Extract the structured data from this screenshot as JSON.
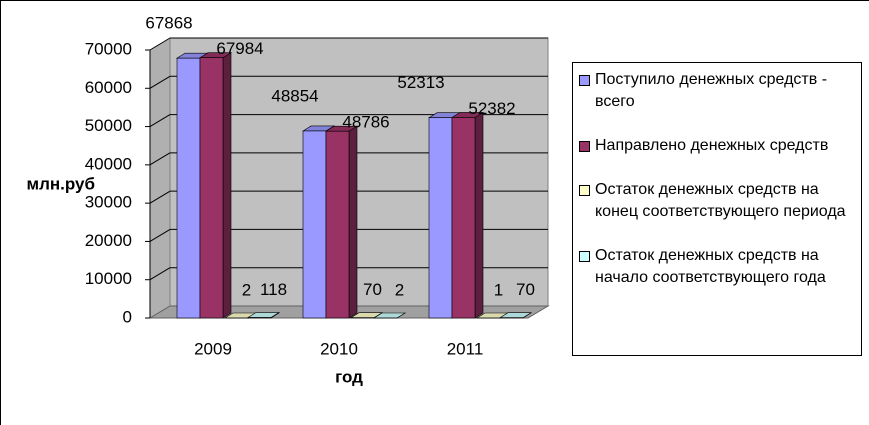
{
  "chart_data": {
    "type": "bar3d",
    "x_label": "год",
    "y_label": "млн.руб",
    "categories": [
      "2009",
      "2010",
      "2011"
    ],
    "series": [
      {
        "name": "Поступило денежных средств - всего",
        "color": "#9999ff",
        "values": [
          67868,
          48854,
          52313
        ]
      },
      {
        "name": "Направлено денежных средств",
        "color": "#993366",
        "values": [
          67984,
          48786,
          52382
        ]
      },
      {
        "name": "Остаток денежных средств на конец соответствующего периода",
        "color": "#ffffcc",
        "values": [
          2,
          70,
          1
        ]
      },
      {
        "name": "Остаток денежных средств на начало соответствующего года",
        "color": "#ccffff",
        "values": [
          118,
          2,
          70
        ]
      }
    ],
    "ylim": [
      0,
      70000
    ],
    "yticks": [
      0,
      10000,
      20000,
      30000,
      40000,
      50000,
      60000,
      70000
    ],
    "grid": true,
    "legend": "right"
  }
}
